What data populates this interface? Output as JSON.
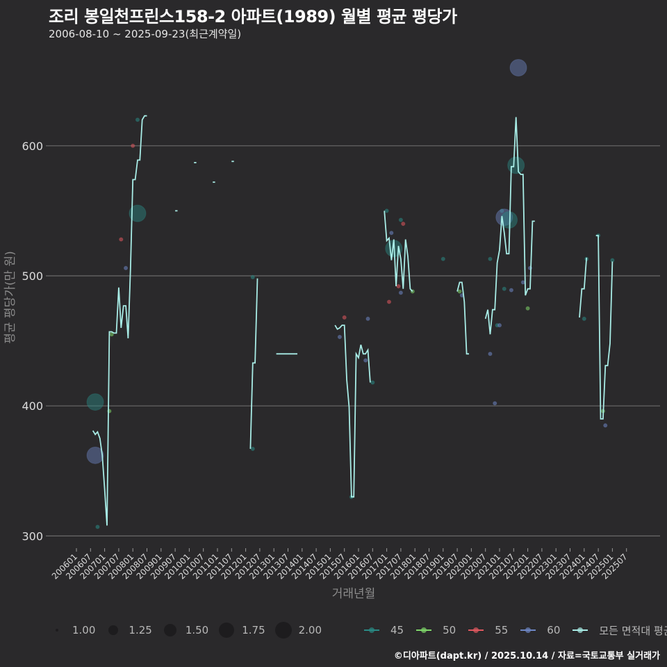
{
  "header": {
    "title": "조리 봉일천프린스158-2 아파트(1989) 월별 평균 평당가",
    "subtitle": "2006-08-10 ~ 2025-09-23(최근계약일)"
  },
  "footer": {
    "credit": "©디아파트(dapt.kr) / 2025.10.14 / 자료=국토교통부 실거래가"
  },
  "legend": {
    "size": [
      {
        "label": "1.00",
        "r": 2
      },
      {
        "label": "1.25",
        "r": 7
      },
      {
        "label": "1.50",
        "r": 9
      },
      {
        "label": "1.75",
        "r": 11
      },
      {
        "label": "2.00",
        "r": 12
      }
    ],
    "color": [
      {
        "label": "45",
        "color": "#2a8a85"
      },
      {
        "label": "50",
        "color": "#7fd66a"
      },
      {
        "label": "55",
        "color": "#e0585f"
      },
      {
        "label": "60",
        "color": "#6d86c4"
      },
      {
        "label": "모든 면적대 평균값",
        "color": "#a8ece6"
      }
    ]
  },
  "chart_data": {
    "type": "line",
    "title": "조리 봉일천프린스158-2 아파트(1989) 월별 평균 평당가",
    "subtitle": "2006-08-10 ~ 2025-09-23(최근계약일)",
    "xlabel": "거래년월",
    "ylabel": "평균 평당가(만 원)",
    "ylim": [
      290,
      665
    ],
    "yticks": [
      300,
      400,
      500,
      600
    ],
    "grid": true,
    "legend_position": "bottom",
    "x_tick_labels": [
      "200601",
      "200607",
      "200701",
      "200707",
      "200801",
      "200807",
      "200901",
      "200907",
      "201001",
      "201007",
      "201101",
      "201107",
      "201201",
      "201207",
      "201301",
      "201307",
      "201401",
      "201407",
      "201501",
      "201507",
      "201601",
      "201607",
      "201701",
      "201707",
      "201801",
      "201807",
      "201901",
      "201907",
      "202001",
      "202007",
      "202101",
      "202107",
      "202201",
      "202207",
      "202301",
      "202307",
      "202401",
      "202407",
      "202501",
      "202507"
    ],
    "series": [
      {
        "name": "모든 면적대 평균값",
        "color": "#a8ece6",
        "segments": [
          [
            [
              "2006-08",
              381
            ],
            [
              "2006-09",
              378
            ],
            [
              "2006-10",
              380
            ],
            [
              "2006-11",
              375
            ],
            [
              "2006-12",
              362
            ],
            [
              "2007-01",
              336
            ],
            [
              "2007-02",
              308
            ],
            [
              "2007-03",
              457
            ],
            [
              "2007-04",
              457
            ],
            [
              "2007-05",
              456
            ],
            [
              "2007-06",
              456
            ],
            [
              "2007-07",
              491
            ],
            [
              "2007-08",
              460
            ],
            [
              "2007-09",
              477
            ],
            [
              "2007-10",
              477
            ],
            [
              "2007-11",
              452
            ],
            [
              "2007-12",
              505
            ],
            [
              "2008-01",
              574
            ],
            [
              "2008-02",
              574
            ],
            [
              "2008-03",
              589
            ],
            [
              "2008-04",
              589
            ],
            [
              "2008-05",
              620
            ],
            [
              "2008-06",
              623
            ],
            [
              "2008-07",
              623
            ]
          ],
          [
            [
              "2009-07",
              550
            ],
            [
              "2009-08",
              550
            ]
          ],
          [
            [
              "2010-03",
              587
            ],
            [
              "2010-04",
              587
            ]
          ],
          [
            [
              "2010-11",
              572
            ],
            [
              "2010-12",
              572
            ]
          ],
          [
            [
              "2011-07",
              588
            ],
            [
              "2011-08",
              588
            ]
          ],
          [
            [
              "2012-03",
              367
            ],
            [
              "2012-04",
              433
            ],
            [
              "2012-05",
              433
            ],
            [
              "2012-06",
              498
            ]
          ],
          [
            [
              "2013-02",
              440
            ],
            [
              "2013-05",
              440
            ],
            [
              "2013-08",
              440
            ],
            [
              "2013-11",
              440
            ]
          ],
          [
            [
              "2015-03",
              462
            ],
            [
              "2015-04",
              459
            ],
            [
              "2015-05",
              460
            ],
            [
              "2015-06",
              462
            ],
            [
              "2015-07",
              462
            ],
            [
              "2015-08",
              420
            ],
            [
              "2015-09",
              399
            ],
            [
              "2015-10",
              330
            ],
            [
              "2015-11",
              330
            ],
            [
              "2015-12",
              440
            ],
            [
              "2016-01",
              437
            ],
            [
              "2016-02",
              447
            ],
            [
              "2016-03",
              440
            ],
            [
              "2016-04",
              440
            ],
            [
              "2016-05",
              443
            ],
            [
              "2016-06",
              418
            ]
          ],
          [
            [
              "2016-12",
              550
            ],
            [
              "2017-01",
              527
            ],
            [
              "2017-02",
              529
            ],
            [
              "2017-03",
              512
            ],
            [
              "2017-04",
              528
            ],
            [
              "2017-05",
              492
            ],
            [
              "2017-06",
              523
            ],
            [
              "2017-07",
              513
            ],
            [
              "2017-08",
              490
            ],
            [
              "2017-09",
              528
            ],
            [
              "2017-10",
              515
            ],
            [
              "2017-11",
              490
            ],
            [
              "2017-12",
              488
            ]
          ],
          [
            [
              "2019-07",
              488
            ],
            [
              "2019-08",
              495
            ],
            [
              "2019-09",
              495
            ],
            [
              "2019-10",
              480
            ],
            [
              "2019-11",
              440
            ],
            [
              "2019-12",
              440
            ]
          ],
          [
            [
              "2020-07",
              467
            ],
            [
              "2020-08",
              474
            ],
            [
              "2020-09",
              455
            ],
            [
              "2020-10",
              474
            ],
            [
              "2020-11",
              474
            ],
            [
              "2020-12",
              510
            ],
            [
              "2021-01",
              520
            ],
            [
              "2021-02",
              546
            ],
            [
              "2021-03",
              533
            ],
            [
              "2021-04",
              517
            ],
            [
              "2021-05",
              517
            ],
            [
              "2021-06",
              584
            ],
            [
              "2021-07",
              584
            ],
            [
              "2021-08",
              622
            ],
            [
              "2021-09",
              580
            ],
            [
              "2021-10",
              578
            ],
            [
              "2021-11",
              578
            ],
            [
              "2021-12",
              485
            ],
            [
              "2022-01",
              490
            ],
            [
              "2022-02",
              490
            ],
            [
              "2022-03",
              542
            ],
            [
              "2022-04",
              542
            ]
          ],
          [
            [
              "2023-11",
              468
            ],
            [
              "2023-12",
              490
            ],
            [
              "2024-01",
              490
            ],
            [
              "2024-02",
              514
            ]
          ],
          [
            [
              "2024-06",
              531
            ],
            [
              "2024-07",
              531
            ],
            [
              "2024-08",
              390
            ],
            [
              "2024-09",
              390
            ],
            [
              "2024-10",
              431
            ],
            [
              "2024-11",
              431
            ],
            [
              "2024-12",
              448
            ],
            [
              "2025-01",
              511
            ]
          ]
        ]
      }
    ],
    "points": [
      {
        "area": "45",
        "x": "2006-09",
        "y": 403,
        "size": 2.0
      },
      {
        "area": "60",
        "x": "2006-09",
        "y": 362,
        "size": 2.0
      },
      {
        "area": "45",
        "x": "2006-10",
        "y": 307,
        "size": 1.0
      },
      {
        "area": "50",
        "x": "2007-03",
        "y": 396,
        "size": 1.0
      },
      {
        "area": "50",
        "x": "2007-04",
        "y": 455,
        "size": 1.0
      },
      {
        "area": "55",
        "x": "2007-08",
        "y": 528,
        "size": 1.0
      },
      {
        "area": "60",
        "x": "2007-10",
        "y": 506,
        "size": 1.0
      },
      {
        "area": "45",
        "x": "2008-03",
        "y": 548,
        "size": 2.0
      },
      {
        "area": "55",
        "x": "2008-01",
        "y": 600,
        "size": 1.0
      },
      {
        "area": "45",
        "x": "2008-03",
        "y": 620,
        "size": 1.0
      },
      {
        "area": "45",
        "x": "2012-04",
        "y": 367,
        "size": 1.0
      },
      {
        "area": "45",
        "x": "2012-04",
        "y": 499,
        "size": 1.0
      },
      {
        "area": "60",
        "x": "2015-05",
        "y": 453,
        "size": 1.0
      },
      {
        "area": "55",
        "x": "2015-07",
        "y": 468,
        "size": 1.0
      },
      {
        "area": "45",
        "x": "2015-10",
        "y": 330,
        "size": 1.0
      },
      {
        "area": "60",
        "x": "2016-04",
        "y": 435,
        "size": 1.0
      },
      {
        "area": "60",
        "x": "2016-05",
        "y": 467,
        "size": 1.0
      },
      {
        "area": "45",
        "x": "2016-07",
        "y": 418,
        "size": 1.0
      },
      {
        "area": "45",
        "x": "2017-01",
        "y": 550,
        "size": 1.0
      },
      {
        "area": "55",
        "x": "2017-02",
        "y": 480,
        "size": 1.0
      },
      {
        "area": "60",
        "x": "2017-03",
        "y": 533,
        "size": 1.0
      },
      {
        "area": "45",
        "x": "2017-04",
        "y": 521,
        "size": 2.0
      },
      {
        "area": "55",
        "x": "2017-06",
        "y": 492,
        "size": 1.0
      },
      {
        "area": "45",
        "x": "2017-07",
        "y": 543,
        "size": 1.0
      },
      {
        "area": "55",
        "x": "2017-08",
        "y": 540,
        "size": 1.0
      },
      {
        "area": "60",
        "x": "2017-07",
        "y": 487,
        "size": 1.0
      },
      {
        "area": "50",
        "x": "2017-12",
        "y": 488,
        "size": 1.0
      },
      {
        "area": "45",
        "x": "2019-01",
        "y": 513,
        "size": 1.0
      },
      {
        "area": "50",
        "x": "2019-08",
        "y": 488,
        "size": 1.0
      },
      {
        "area": "60",
        "x": "2019-09",
        "y": 485,
        "size": 1.0
      },
      {
        "area": "60",
        "x": "2020-09",
        "y": 440,
        "size": 1.0
      },
      {
        "area": "45",
        "x": "2020-09",
        "y": 513,
        "size": 1.0
      },
      {
        "area": "60",
        "x": "2020-11",
        "y": 402,
        "size": 1.0
      },
      {
        "area": "45",
        "x": "2020-12",
        "y": 462,
        "size": 1.0
      },
      {
        "area": "60",
        "x": "2021-01",
        "y": 462,
        "size": 1.0
      },
      {
        "area": "45",
        "x": "2021-02",
        "y": 550,
        "size": 1.0
      },
      {
        "area": "45",
        "x": "2021-03",
        "y": 490,
        "size": 1.0
      },
      {
        "area": "60",
        "x": "2021-03",
        "y": 545,
        "size": 2.0
      },
      {
        "area": "45",
        "x": "2021-05",
        "y": 543,
        "size": 2.0
      },
      {
        "area": "60",
        "x": "2021-06",
        "y": 489,
        "size": 1.0
      },
      {
        "area": "45",
        "x": "2021-08",
        "y": 585,
        "size": 2.0
      },
      {
        "area": "60",
        "x": "2021-09",
        "y": 660,
        "size": 2.0
      },
      {
        "area": "60",
        "x": "2021-11",
        "y": 495,
        "size": 1.0
      },
      {
        "area": "50",
        "x": "2022-01",
        "y": 475,
        "size": 1.0
      },
      {
        "area": "60",
        "x": "2022-02",
        "y": 506,
        "size": 1.0
      },
      {
        "area": "45",
        "x": "2024-01",
        "y": 467,
        "size": 1.0
      },
      {
        "area": "45",
        "x": "2024-02",
        "y": 513,
        "size": 1.0
      },
      {
        "area": "45",
        "x": "2024-07",
        "y": 531,
        "size": 1.0
      },
      {
        "area": "50",
        "x": "2024-09",
        "y": 396,
        "size": 1.0
      },
      {
        "area": "60",
        "x": "2024-10",
        "y": 385,
        "size": 1.0
      },
      {
        "area": "45",
        "x": "2025-01",
        "y": 512,
        "size": 1.0
      }
    ]
  }
}
